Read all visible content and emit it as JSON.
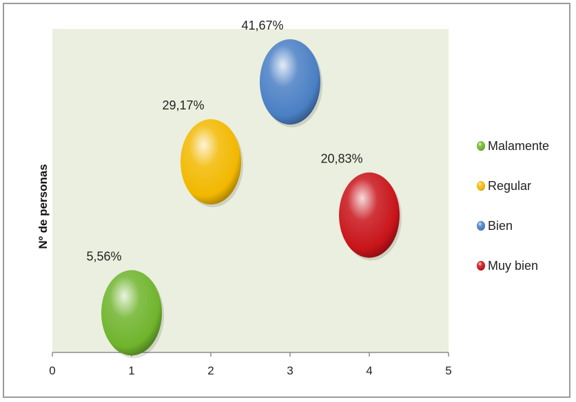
{
  "chart_data": {
    "type": "scatter",
    "ylabel": "Nº de personas",
    "xlabel": "",
    "title": "",
    "xlim": [
      0,
      5
    ],
    "x_ticks": [
      "0",
      "1",
      "2",
      "3",
      "4",
      "5"
    ],
    "grid": false,
    "legend_position": "right",
    "series": [
      {
        "name": "Malamente",
        "x": 1,
        "y": 0.4,
        "label": "5,56%",
        "color": "#6fb42c"
      },
      {
        "name": "Regular",
        "x": 2,
        "y": 2.1,
        "label": "29,17%",
        "color": "#f2b800"
      },
      {
        "name": "Bien",
        "x": 3,
        "y": 3.0,
        "label": "41,67%",
        "color": "#4a7fc4"
      },
      {
        "name": "Muy bien",
        "x": 4,
        "y": 1.5,
        "label": "20,83%",
        "color": "#c8141a"
      }
    ]
  }
}
